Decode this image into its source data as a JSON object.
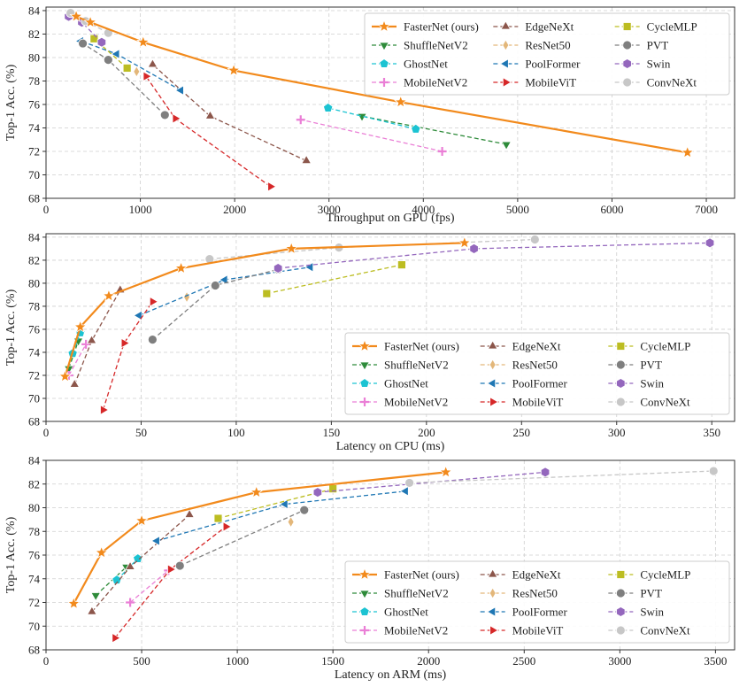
{
  "chart_data": [
    {
      "type": "line",
      "id": "gpu",
      "xlabel": "Throughput on GPU (fps)",
      "ylabel": "Top-1 Acc. (%)",
      "xlim": [
        0,
        7300
      ],
      "ylim": [
        68,
        84.3
      ],
      "xticks": [
        0,
        1000,
        2000,
        3000,
        4000,
        5000,
        6000,
        7000
      ],
      "yticks": [
        68,
        70,
        72,
        74,
        76,
        78,
        80,
        82,
        84
      ],
      "grid": true,
      "legend_position": "top-right",
      "series": [
        {
          "name": "FasterNet (ours)",
          "x": [
            6800,
            3760,
            1990,
            1030,
            470,
            320
          ],
          "y": [
            71.9,
            76.2,
            78.9,
            81.3,
            83.0,
            83.5
          ]
        },
        {
          "name": "ShuffleNetV2",
          "x": [
            4880,
            3350
          ],
          "y": [
            72.6,
            75.0
          ]
        },
        {
          "name": "GhostNet",
          "x": [
            3920,
            2990
          ],
          "y": [
            73.9,
            75.7
          ]
        },
        {
          "name": "MobileNetV2",
          "x": [
            4200,
            2700
          ],
          "y": [
            72.0,
            74.7
          ]
        },
        {
          "name": "EdgeNeXt",
          "x": [
            2760,
            1740,
            1130
          ],
          "y": [
            71.2,
            75.0,
            79.4
          ]
        },
        {
          "name": "ResNet50",
          "x": [
            960
          ],
          "y": [
            78.8
          ]
        },
        {
          "name": "PoolFormer",
          "x": [
            1430,
            750,
            370
          ],
          "y": [
            77.2,
            80.3,
            81.4
          ]
        },
        {
          "name": "MobileViT",
          "x": [
            2380,
            1370,
            1060
          ],
          "y": [
            69.0,
            74.8,
            78.4
          ]
        },
        {
          "name": "CycleMLP",
          "x": [
            860,
            510
          ],
          "y": [
            79.1,
            81.6
          ]
        },
        {
          "name": "PVT",
          "x": [
            1260,
            660,
            390
          ],
          "y": [
            75.1,
            79.8,
            81.2
          ]
        },
        {
          "name": "Swin",
          "x": [
            590,
            380,
            240
          ],
          "y": [
            81.3,
            83.0,
            83.5
          ]
        },
        {
          "name": "ConvNeXt",
          "x": [
            660,
            420,
            260
          ],
          "y": [
            82.1,
            83.1,
            83.8
          ]
        }
      ]
    },
    {
      "type": "line",
      "id": "cpu",
      "xlabel": "Latency on CPU (ms)",
      "ylabel": "Top-1 Acc. (%)",
      "xlim": [
        0,
        362
      ],
      "ylim": [
        68,
        84.3
      ],
      "xticks": [
        0,
        50,
        100,
        150,
        200,
        250,
        300,
        350
      ],
      "yticks": [
        68,
        70,
        72,
        74,
        76,
        78,
        80,
        82,
        84
      ],
      "grid": true,
      "legend_position": "bottom-right",
      "series": [
        {
          "name": "FasterNet (ours)",
          "x": [
            10,
            18,
            33,
            71,
            129,
            220
          ],
          "y": [
            71.9,
            76.2,
            78.9,
            81.3,
            83.0,
            83.5
          ]
        },
        {
          "name": "ShuffleNetV2",
          "x": [
            12,
            17
          ],
          "y": [
            72.6,
            75.0
          ]
        },
        {
          "name": "GhostNet",
          "x": [
            14,
            18
          ],
          "y": [
            73.9,
            75.7
          ]
        },
        {
          "name": "MobileNetV2",
          "x": [
            12,
            21
          ],
          "y": [
            72.0,
            74.7
          ]
        },
        {
          "name": "EdgeNeXt",
          "x": [
            15,
            24,
            39
          ],
          "y": [
            71.2,
            75.0,
            79.4
          ]
        },
        {
          "name": "ResNet50",
          "x": [
            74
          ],
          "y": [
            78.8
          ]
        },
        {
          "name": "PoolFormer",
          "x": [
            49,
            94,
            139
          ],
          "y": [
            77.2,
            80.3,
            81.4
          ]
        },
        {
          "name": "MobileViT",
          "x": [
            30,
            41,
            56
          ],
          "y": [
            69.0,
            74.8,
            78.4
          ]
        },
        {
          "name": "CycleMLP",
          "x": [
            116,
            187
          ],
          "y": [
            79.1,
            81.6
          ]
        },
        {
          "name": "PVT",
          "x": [
            56,
            89,
            122
          ],
          "y": [
            75.1,
            79.8,
            81.2
          ]
        },
        {
          "name": "Swin",
          "x": [
            122,
            225,
            349
          ],
          "y": [
            81.3,
            83.0,
            83.5
          ]
        },
        {
          "name": "ConvNeXt",
          "x": [
            86,
            154,
            257
          ],
          "y": [
            82.1,
            83.1,
            83.8
          ]
        }
      ]
    },
    {
      "type": "line",
      "id": "arm",
      "xlabel": "Latency on ARM (ms)",
      "ylabel": "Top-1 Acc. (%)",
      "xlim": [
        0,
        3600
      ],
      "ylim": [
        68,
        84
      ],
      "xticks": [
        0,
        500,
        1000,
        1500,
        2000,
        2500,
        3000,
        3500
      ],
      "yticks": [
        68,
        70,
        72,
        74,
        76,
        78,
        80,
        82,
        84
      ],
      "grid": true,
      "legend_position": "bottom-right",
      "series": [
        {
          "name": "FasterNet (ours)",
          "x": [
            145,
            290,
            500,
            1100,
            2090
          ],
          "y": [
            71.9,
            76.2,
            78.9,
            81.3,
            83.0
          ]
        },
        {
          "name": "ShuffleNetV2",
          "x": [
            260,
            420
          ],
          "y": [
            72.6,
            75.0
          ]
        },
        {
          "name": "GhostNet",
          "x": [
            370,
            480
          ],
          "y": [
            73.9,
            75.7
          ]
        },
        {
          "name": "MobileNetV2",
          "x": [
            440,
            640
          ],
          "y": [
            72.0,
            74.7
          ]
        },
        {
          "name": "EdgeNeXt",
          "x": [
            240,
            440,
            750
          ],
          "y": [
            71.2,
            75.0,
            79.4
          ]
        },
        {
          "name": "ResNet50",
          "x": [
            1280
          ],
          "y": [
            78.8
          ]
        },
        {
          "name": "PoolFormer",
          "x": [
            580,
            1250,
            1880
          ],
          "y": [
            77.2,
            80.3,
            81.4
          ]
        },
        {
          "name": "MobileViT",
          "x": [
            360,
            650,
            940
          ],
          "y": [
            69.0,
            74.8,
            78.4
          ]
        },
        {
          "name": "CycleMLP",
          "x": [
            900,
            1500
          ],
          "y": [
            79.1,
            81.6
          ]
        },
        {
          "name": "PVT",
          "x": [
            700,
            1350
          ],
          "y": [
            75.1,
            79.8
          ]
        },
        {
          "name": "Swin",
          "x": [
            1420,
            2610
          ],
          "y": [
            81.3,
            83.0
          ]
        },
        {
          "name": "ConvNeXt",
          "x": [
            1900,
            3490
          ],
          "y": [
            82.1,
            83.1
          ]
        }
      ]
    }
  ],
  "legend": [
    {
      "name": "FasterNet (ours)",
      "color": "#f28a1c",
      "marker": "star",
      "dash": false
    },
    {
      "name": "ShuffleNetV2",
      "color": "#2e8b3a",
      "marker": "tri-down",
      "dash": true
    },
    {
      "name": "GhostNet",
      "color": "#1cc3d2",
      "marker": "pentagon",
      "dash": true
    },
    {
      "name": "MobileNetV2",
      "color": "#ea7fd6",
      "marker": "plus",
      "dash": true
    },
    {
      "name": "EdgeNeXt",
      "color": "#8c564b",
      "marker": "tri-up",
      "dash": true
    },
    {
      "name": "ResNet50",
      "color": "#e3b77a",
      "marker": "thin-diamond",
      "dash": true
    },
    {
      "name": "PoolFormer",
      "color": "#1f77b4",
      "marker": "tri-left",
      "dash": true
    },
    {
      "name": "MobileViT",
      "color": "#d62728",
      "marker": "tri-right",
      "dash": true
    },
    {
      "name": "CycleMLP",
      "color": "#bcbd22",
      "marker": "square",
      "dash": true
    },
    {
      "name": "PVT",
      "color": "#7f7f7f",
      "marker": "circle",
      "dash": true
    },
    {
      "name": "Swin",
      "color": "#9467bd",
      "marker": "hexagon",
      "dash": true
    },
    {
      "name": "ConvNeXt",
      "color": "#c7c7c7",
      "marker": "circle",
      "dash": true
    }
  ]
}
